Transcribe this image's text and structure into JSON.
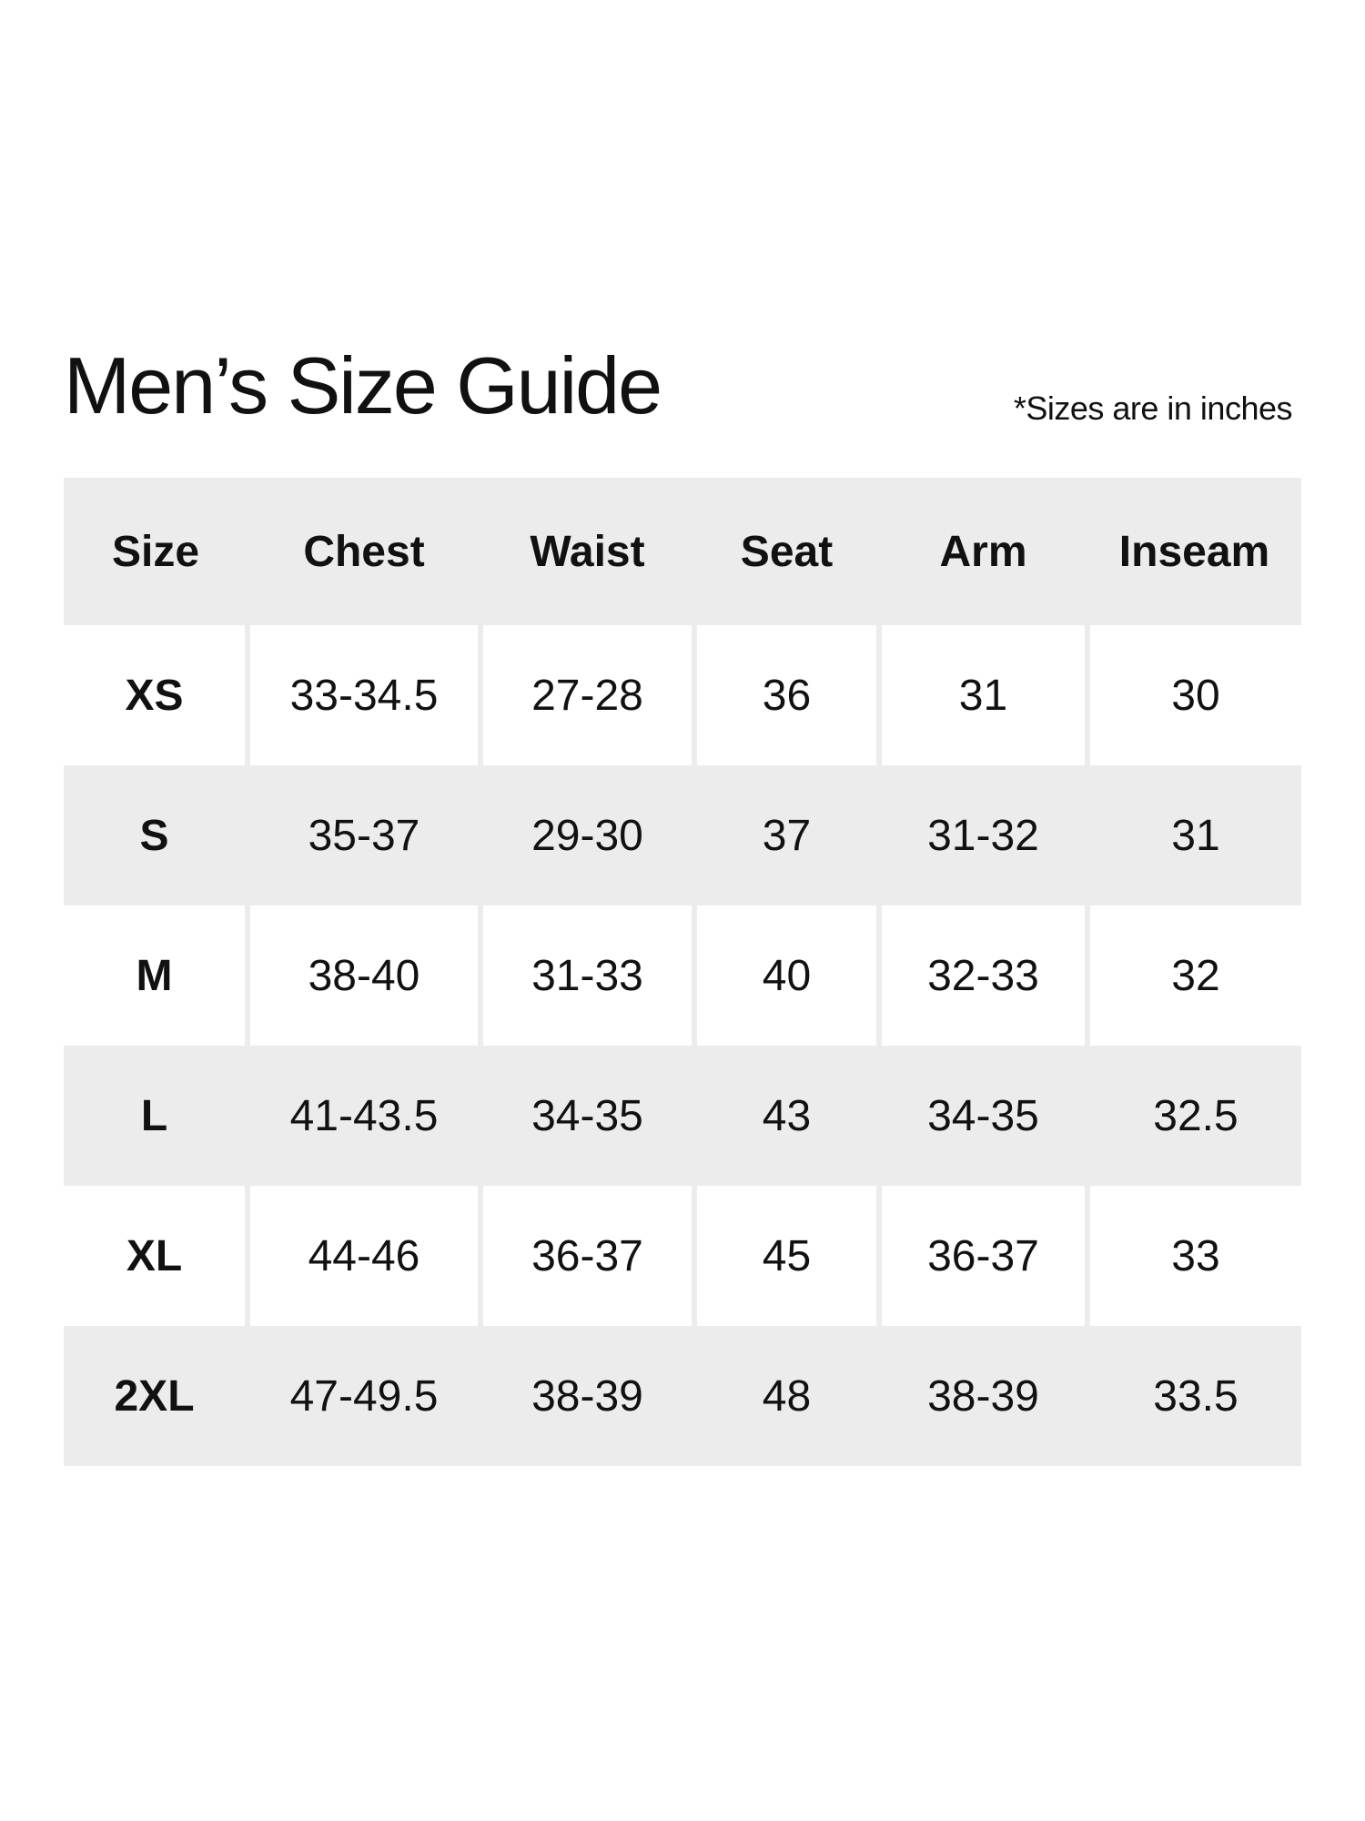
{
  "title": "Men’s Size Guide",
  "note": "*Sizes are in inches",
  "table": {
    "headers": [
      "Size",
      "Chest",
      "Waist",
      "Seat",
      "Arm",
      "Inseam"
    ],
    "rows": [
      [
        "XS",
        "33-34.5",
        "27-28",
        "36",
        "31",
        "30"
      ],
      [
        "S",
        "35-37",
        "29-30",
        "37",
        "31-32",
        "31"
      ],
      [
        "M",
        "38-40",
        "31-33",
        "40",
        "32-33",
        "32"
      ],
      [
        "L",
        "41-43.5",
        "34-35",
        "43",
        "34-35",
        "32.5"
      ],
      [
        "XL",
        "44-46",
        "36-37",
        "45",
        "36-37",
        "33"
      ],
      [
        "2XL",
        "47-49.5",
        "38-39",
        "48",
        "38-39",
        "33.5"
      ]
    ]
  },
  "colors": {
    "row_shade": "#ececec",
    "text": "#111111"
  }
}
